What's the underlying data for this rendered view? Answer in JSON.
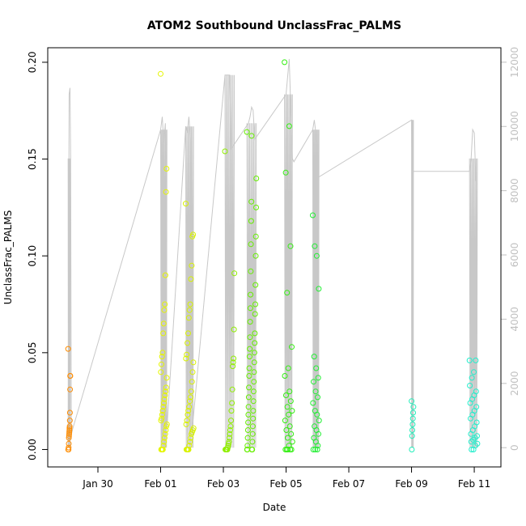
{
  "chart_data": {
    "type": "scatter",
    "title": "ATOM2 Southbound UnclassFrac_PALMS",
    "xlabel": "Date",
    "ylabel": "UnclassFrac_PALMS",
    "x_ticks": [
      "Jan 30",
      "Feb 01",
      "Feb 03",
      "Feb 05",
      "Feb 07",
      "Feb 09",
      "Feb 11"
    ],
    "x_tick_days": [
      30,
      32,
      34,
      36,
      38,
      40,
      42
    ],
    "xlim_days": [
      28.4,
      42.85
    ],
    "ylim": [
      -0.009,
      0.2075
    ],
    "y_ticks": [
      0.0,
      0.05,
      0.1,
      0.15,
      0.2
    ],
    "y_tick_labels": [
      "0.00",
      "0.05",
      "0.10",
      "0.15",
      "0.20"
    ],
    "y2lim": [
      -600,
      12450
    ],
    "y2_ticks": [
      0,
      2000,
      4000,
      6000,
      8000,
      10000,
      12000
    ],
    "y2_tick_labels": [
      "0",
      "2000",
      "4000",
      "6000",
      "8000",
      "10000",
      "12000"
    ],
    "y2_series_color": "#c8c8c8",
    "grid": false,
    "point_marker": "open-circle",
    "point_clusters": [
      {
        "day_start": 29.05,
        "day_end": 29.12,
        "color": "#ff8c00",
        "values": [
          0.052,
          0.038,
          0.038,
          0.031,
          0.019,
          0.015,
          0.012,
          0.011,
          0.01,
          0.009,
          0.008,
          0.007,
          0.006,
          0.003,
          0.001,
          0.0,
          0.0,
          0.0
        ]
      },
      {
        "day_start": 32.0,
        "day_end": 32.2,
        "color": "#e5f500",
        "values": [
          0.194,
          0.145,
          0.133,
          0.09,
          0.075,
          0.072,
          0.065,
          0.06,
          0.05,
          0.048,
          0.044,
          0.04,
          0.037,
          0.032,
          0.03,
          0.028,
          0.026,
          0.024,
          0.022,
          0.02,
          0.018,
          0.016,
          0.015,
          0.013,
          0.012,
          0.01,
          0.008,
          0.006,
          0.004,
          0.002,
          0.0,
          0.0,
          0.0,
          0.0
        ]
      },
      {
        "day_start": 32.8,
        "day_end": 33.05,
        "color": "#d8f200",
        "values": [
          0.127,
          0.111,
          0.11,
          0.095,
          0.088,
          0.075,
          0.072,
          0.068,
          0.06,
          0.055,
          0.049,
          0.047,
          0.045,
          0.04,
          0.035,
          0.03,
          0.027,
          0.025,
          0.022,
          0.02,
          0.018,
          0.015,
          0.013,
          0.011,
          0.01,
          0.009,
          0.008,
          0.006,
          0.004,
          0.002,
          0.0,
          0.0,
          0.0,
          0.0
        ]
      },
      {
        "day_start": 34.05,
        "day_end": 34.35,
        "color": "#90ef00",
        "values": [
          0.154,
          0.091,
          0.062,
          0.047,
          0.045,
          0.043,
          0.031,
          0.024,
          0.02,
          0.015,
          0.012,
          0.01,
          0.008,
          0.006,
          0.004,
          0.003,
          0.002,
          0.001,
          0.0,
          0.0,
          0.0,
          0.0,
          0.0,
          0.0
        ]
      },
      {
        "day_start": 34.75,
        "day_end": 35.05,
        "color": "#66ee00",
        "values": [
          0.164,
          0.162,
          0.14,
          0.128,
          0.125,
          0.118,
          0.11,
          0.106,
          0.1,
          0.092,
          0.085,
          0.08,
          0.075,
          0.073,
          0.07,
          0.066,
          0.06,
          0.058,
          0.055,
          0.052,
          0.05,
          0.048,
          0.045,
          0.042,
          0.04,
          0.038,
          0.035,
          0.032,
          0.03,
          0.027,
          0.025,
          0.022,
          0.02,
          0.018,
          0.016,
          0.014,
          0.012,
          0.01,
          0.008,
          0.006,
          0.004,
          0.002,
          0.0,
          0.0,
          0.0,
          0.0,
          0.0
        ]
      },
      {
        "day_start": 35.95,
        "day_end": 36.2,
        "color": "#33ee11",
        "values": [
          0.2,
          0.167,
          0.143,
          0.105,
          0.081,
          0.053,
          0.042,
          0.038,
          0.03,
          0.028,
          0.025,
          0.022,
          0.02,
          0.018,
          0.015,
          0.012,
          0.01,
          0.008,
          0.006,
          0.004,
          0.002,
          0.0,
          0.0,
          0.0,
          0.0,
          0.0
        ]
      },
      {
        "day_start": 36.85,
        "day_end": 37.05,
        "color": "#22ee33",
        "values": [
          0.121,
          0.105,
          0.1,
          0.083,
          0.048,
          0.042,
          0.037,
          0.035,
          0.03,
          0.027,
          0.024,
          0.02,
          0.018,
          0.015,
          0.012,
          0.01,
          0.008,
          0.006,
          0.004,
          0.002,
          0.0,
          0.0,
          0.0
        ]
      },
      {
        "day_start": 40.0,
        "day_end": 40.06,
        "color": "#22eebb",
        "values": [
          0.025,
          0.022,
          0.019,
          0.016,
          0.013,
          0.01,
          0.007,
          0.0
        ]
      },
      {
        "day_start": 41.85,
        "day_end": 42.1,
        "color": "#22eecc",
        "values": [
          0.046,
          0.046,
          0.04,
          0.037,
          0.033,
          0.03,
          0.028,
          0.026,
          0.024,
          0.022,
          0.02,
          0.018,
          0.016,
          0.014,
          0.012,
          0.01,
          0.008,
          0.007,
          0.006,
          0.005,
          0.004,
          0.003,
          0.002,
          0.0,
          0.0
        ]
      }
    ],
    "y2_series": {
      "name": "",
      "days": [
        29.05,
        29.08,
        29.11,
        29.13,
        29.15,
        32.0,
        32.05,
        32.1,
        32.15,
        32.2,
        32.8,
        32.85,
        32.9,
        32.95,
        33.0,
        34.05,
        34.1,
        34.15,
        34.2,
        34.25,
        34.8,
        34.85,
        34.9,
        34.95,
        35.0,
        36.0,
        36.1,
        36.2,
        36.25,
        36.85,
        36.9,
        36.95,
        37.0,
        40.0,
        40.02,
        40.05,
        41.85,
        41.9,
        41.95,
        42.0,
        42.05
      ],
      "values": [
        0,
        11000,
        11200,
        9000,
        400,
        9900,
        10300,
        9500,
        10100,
        600,
        10000,
        9800,
        10300,
        9600,
        500,
        11600,
        11600,
        11600,
        11600,
        9300,
        10100,
        10300,
        10600,
        10500,
        9600,
        11000,
        12100,
        9000,
        8900,
        9900,
        10200,
        9800,
        8400,
        10200,
        8600,
        8600,
        8600,
        9000,
        9900,
        9800,
        8300
      ],
      "valleys_days": [
        29.2,
        31.9,
        32.25,
        33.1,
        33.98,
        34.3,
        35.1,
        35.9,
        36.3,
        36.8,
        37.1,
        39.98,
        41.8,
        42.1
      ],
      "valleys_values": [
        600,
        4000,
        6700,
        4200,
        300,
        8400,
        3500,
        6800,
        4700,
        4600,
        1300,
        8600,
        3500,
        8300
      ]
    }
  }
}
